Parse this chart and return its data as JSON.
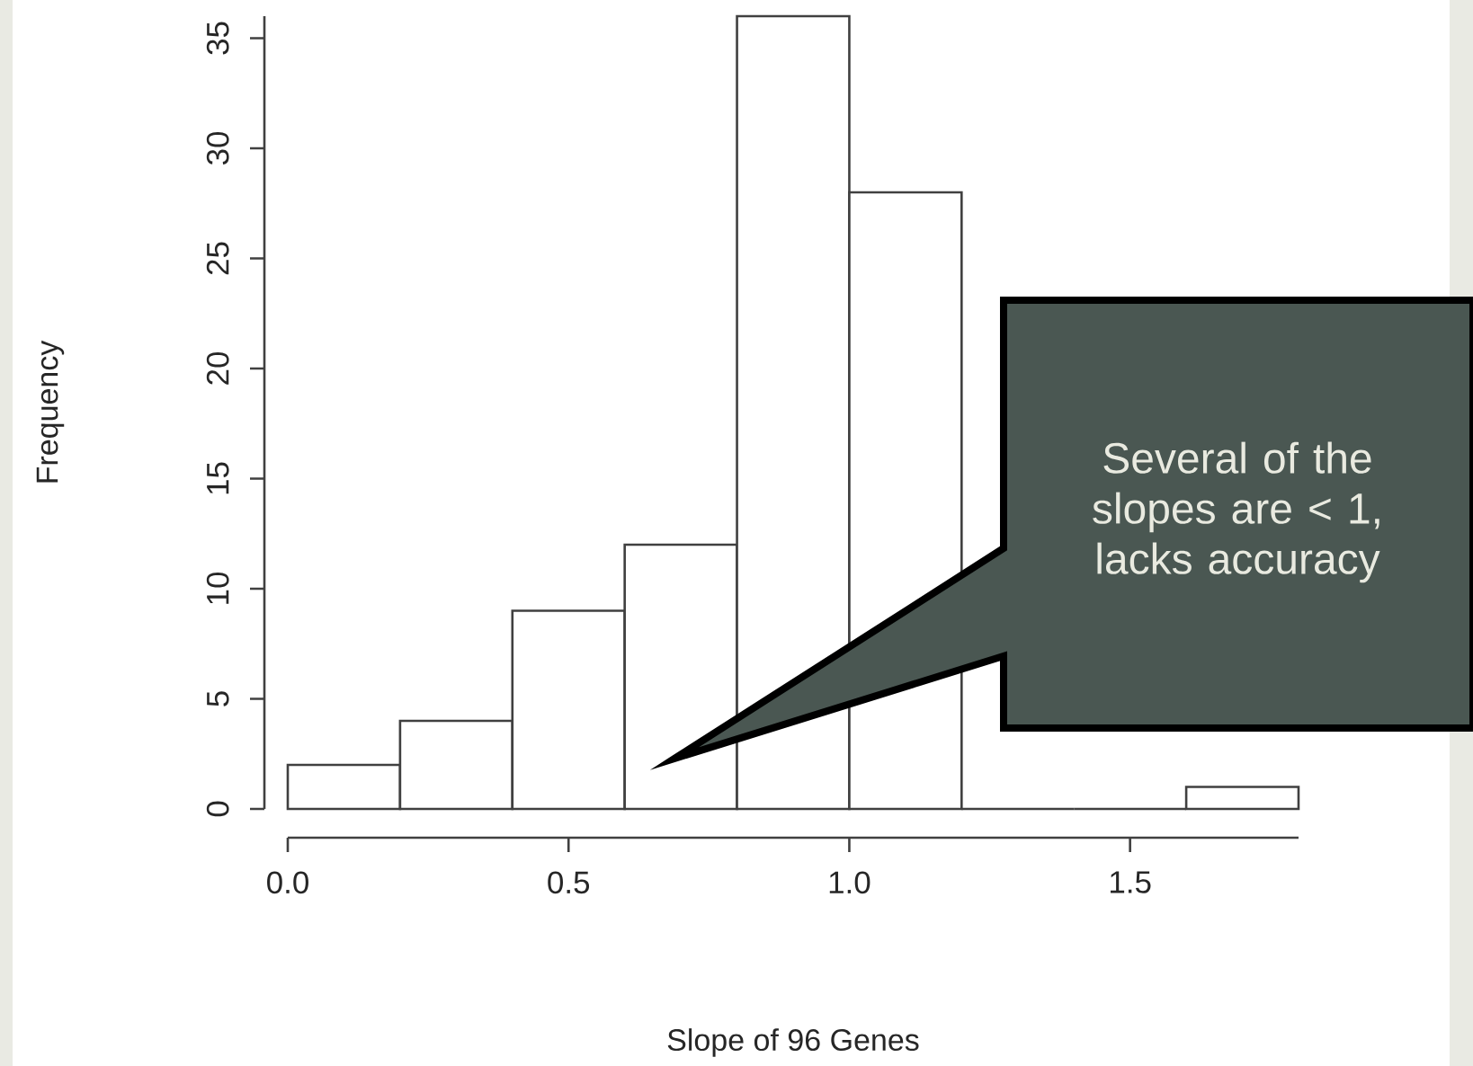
{
  "chart_data": {
    "type": "histogram",
    "xlabel": "Slope of 96 Genes",
    "ylabel": "Frequency",
    "bins": [
      0.0,
      0.2,
      0.4,
      0.6,
      0.8,
      1.0,
      1.2,
      1.4,
      1.6,
      1.8
    ],
    "values": [
      2,
      4,
      9,
      12,
      36,
      28,
      0,
      0,
      1
    ],
    "xlim": [
      0.0,
      1.8
    ],
    "ylim": [
      0,
      36
    ],
    "xticks": [
      {
        "value": 0,
        "label": "0.0"
      },
      0.5,
      {
        "value": 1,
        "label": "1.0"
      },
      1.5
    ],
    "yticks": [
      0,
      5,
      10,
      15,
      20,
      25,
      30,
      35
    ],
    "annotations": [
      "Several of the slopes are < 1, lacks accuracy"
    ]
  }
}
